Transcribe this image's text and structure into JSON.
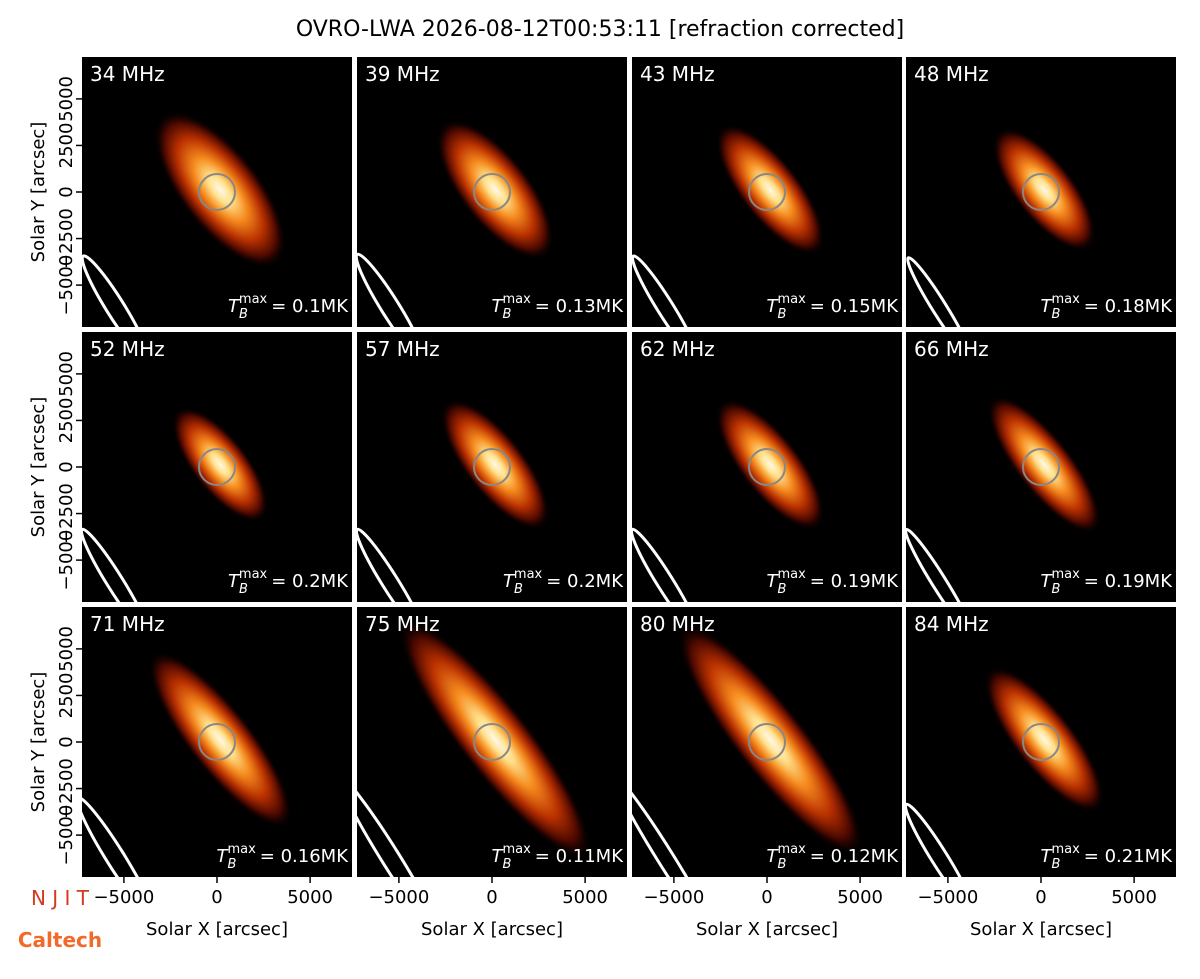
{
  "chart_data": {
    "type": "image-grid",
    "title": "OVRO-LWA 2026-08-12T00:53:11 [refraction corrected]",
    "xlabel": "Solar X [arcsec]",
    "ylabel": "Solar Y [arcsec]",
    "xlim": [
      -7250,
      7250
    ],
    "ylim": [
      -7250,
      7250
    ],
    "xticks": [
      {
        "value": -5000,
        "label": "−5000"
      },
      0,
      5000
    ],
    "yticks": [
      {
        "value": -5000,
        "label": "−5000"
      },
      {
        "value": -2500,
        "label": "−2500"
      },
      0,
      2500,
      5000
    ],
    "columns": 4,
    "tmax_symbol": "T",
    "tmax_sub": "B",
    "tmax_sup": "max",
    "panels": [
      {
        "label": "34 MHz",
        "tmax": "= 0.1MK"
      },
      {
        "label": "39 MHz",
        "tmax": "= 0.13MK"
      },
      {
        "label": "43 MHz",
        "tmax": "= 0.15MK"
      },
      {
        "label": "48 MHz",
        "tmax": "= 0.18MK"
      },
      {
        "label": "52 MHz",
        "tmax": "= 0.2MK"
      },
      {
        "label": "57 MHz",
        "tmax": "= 0.2MK"
      },
      {
        "label": "62 MHz",
        "tmax": "= 0.19MK"
      },
      {
        "label": "66 MHz",
        "tmax": "= 0.19MK"
      },
      {
        "label": "71 MHz",
        "tmax": "= 0.16MK"
      },
      {
        "label": "75 MHz",
        "tmax": "= 0.11MK"
      },
      {
        "label": "80 MHz",
        "tmax": "= 0.12MK"
      },
      {
        "label": "84 MHz",
        "tmax": "= 0.21MK"
      }
    ],
    "logos": [
      "N J I T",
      "Caltech"
    ]
  }
}
